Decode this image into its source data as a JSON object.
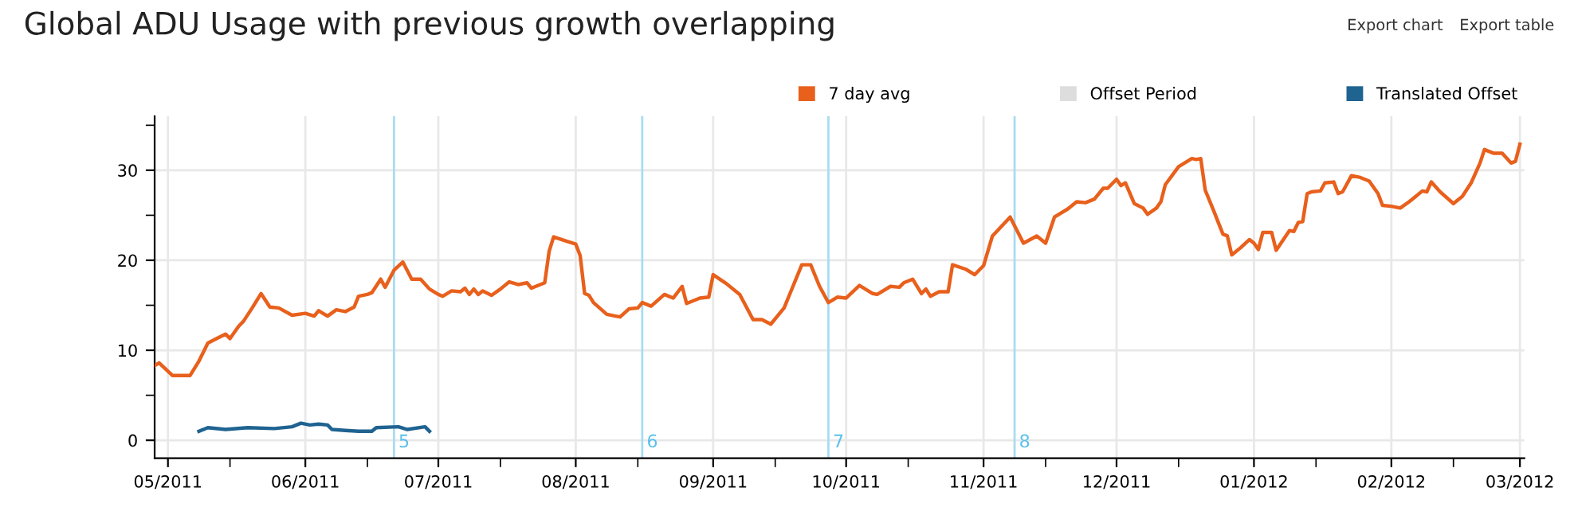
{
  "chart_data": {
    "type": "line",
    "title": "Global ADU Usage with previous growth overlapping",
    "annotations": [
      "Export chart",
      "Export table"
    ],
    "xlim": [
      "2011-04-28",
      "2012-03-02"
    ],
    "xticks": [
      {
        "value": "2011-05-01",
        "label": "05/2011"
      },
      {
        "value": "2011-05-15",
        "label": null
      },
      {
        "value": "2011-06-01",
        "label": "06/2011"
      },
      {
        "value": "2011-06-15",
        "label": null
      },
      {
        "value": "2011-07-01",
        "label": "07/2011"
      },
      {
        "value": "2011-07-15",
        "label": null
      },
      {
        "value": "2011-08-01",
        "label": "08/2011"
      },
      {
        "value": "2011-08-15",
        "label": null
      },
      {
        "value": "2011-09-01",
        "label": "09/2011"
      },
      {
        "value": "2011-09-15",
        "label": null
      },
      {
        "value": "2011-10-01",
        "label": "10/2011"
      },
      {
        "value": "2011-10-15",
        "label": null
      },
      {
        "value": "2011-11-01",
        "label": "11/2011"
      },
      {
        "value": "2011-11-15",
        "label": null
      },
      {
        "value": "2011-12-01",
        "label": "12/2011"
      },
      {
        "value": "2011-12-15",
        "label": null
      },
      {
        "value": "2012-01-01",
        "label": "01/2012"
      },
      {
        "value": "2012-01-15",
        "label": null
      },
      {
        "value": "2012-02-01",
        "label": "02/2012"
      },
      {
        "value": "2012-02-15",
        "label": null
      },
      {
        "value": "2012-03-01",
        "label": "03/2012"
      }
    ],
    "ylim": [
      -2,
      36
    ],
    "yticks": [
      0,
      {
        "value": 5,
        "label": null
      },
      10,
      {
        "value": 15,
        "label": null
      },
      20,
      {
        "value": 25,
        "label": null
      },
      30,
      {
        "value": 35,
        "label": null
      }
    ],
    "grid": true,
    "legend": "top right",
    "line_style": "solid",
    "marker": "none",
    "ref_lines": [
      {
        "axis": "x",
        "value": "2011-06-21",
        "label": "5",
        "color": "#a8dcf2"
      },
      {
        "axis": "x",
        "value": "2011-08-16",
        "label": "6",
        "color": "#a8dcf2"
      },
      {
        "axis": "x",
        "value": "2011-09-27",
        "label": "7",
        "color": "#a8dcf2"
      },
      {
        "axis": "x",
        "value": "2011-11-08",
        "label": "8",
        "color": "#a8dcf2"
      }
    ],
    "series": [
      {
        "name": "7 day avg",
        "color": "#e8601c",
        "x": [
          "2011-04-28",
          "2011-04-29",
          "2011-05-02",
          "2011-05-06",
          "2011-05-08",
          "2011-05-10",
          "2011-05-12",
          "2011-05-14",
          "2011-05-15",
          "2011-05-17",
          "2011-05-18",
          "2011-05-20",
          "2011-05-22",
          "2011-05-24",
          "2011-05-26",
          "2011-05-29",
          "2011-06-01",
          "2011-06-03",
          "2011-06-04",
          "2011-06-06",
          "2011-06-08",
          "2011-06-10",
          "2011-06-12",
          "2011-06-13",
          "2011-06-15",
          "2011-06-16",
          "2011-06-18",
          "2011-06-19",
          "2011-06-21",
          "2011-06-23",
          "2011-06-25",
          "2011-06-27",
          "2011-06-29",
          "2011-07-01",
          "2011-07-02",
          "2011-07-04",
          "2011-07-06",
          "2011-07-07",
          "2011-07-08",
          "2011-07-09",
          "2011-07-10",
          "2011-07-11",
          "2011-07-13",
          "2011-07-15",
          "2011-07-17",
          "2011-07-19",
          "2011-07-21",
          "2011-07-22",
          "2011-07-25",
          "2011-07-26",
          "2011-07-27",
          "2011-07-30",
          "2011-08-01",
          "2011-08-02",
          "2011-08-03",
          "2011-08-04",
          "2011-08-05",
          "2011-08-08",
          "2011-08-10",
          "2011-08-11",
          "2011-08-13",
          "2011-08-15",
          "2011-08-16",
          "2011-08-18",
          "2011-08-21",
          "2011-08-23",
          "2011-08-25",
          "2011-08-26",
          "2011-08-29",
          "2011-08-31",
          "2011-09-01",
          "2011-09-04",
          "2011-09-07",
          "2011-09-10",
          "2011-09-12",
          "2011-09-14",
          "2011-09-17",
          "2011-09-19",
          "2011-09-21",
          "2011-09-23",
          "2011-09-25",
          "2011-09-27",
          "2011-09-29",
          "2011-10-01",
          "2011-10-04",
          "2011-10-07",
          "2011-10-08",
          "2011-10-11",
          "2011-10-13",
          "2011-10-14",
          "2011-10-16",
          "2011-10-18",
          "2011-10-19",
          "2011-10-20",
          "2011-10-22",
          "2011-10-24",
          "2011-10-25",
          "2011-10-28",
          "2011-10-30",
          "2011-11-01",
          "2011-11-03",
          "2011-11-07",
          "2011-11-10",
          "2011-11-13",
          "2011-11-15",
          "2011-11-17",
          "2011-11-20",
          "2011-11-22",
          "2011-11-24",
          "2011-11-26",
          "2011-11-28",
          "2011-11-29",
          "2011-12-01",
          "2011-12-02",
          "2011-12-03",
          "2011-12-05",
          "2011-12-07",
          "2011-12-08",
          "2011-12-10",
          "2011-12-11",
          "2011-12-12",
          "2011-12-15",
          "2011-12-18",
          "2011-12-19",
          "2011-12-20",
          "2011-12-21",
          "2011-12-23",
          "2011-12-25",
          "2011-12-26",
          "2011-12-27",
          "2011-12-29",
          "2011-12-31",
          "2012-01-01",
          "2012-01-02",
          "2012-01-03",
          "2012-01-05",
          "2012-01-06",
          "2012-01-09",
          "2012-01-10",
          "2012-01-11",
          "2012-01-12",
          "2012-01-13",
          "2012-01-14",
          "2012-01-16",
          "2012-01-17",
          "2012-01-19",
          "2012-01-20",
          "2012-01-21",
          "2012-01-23",
          "2012-01-25",
          "2012-01-27",
          "2012-01-29",
          "2012-01-30",
          "2012-02-01",
          "2012-02-03",
          "2012-02-05",
          "2012-02-08",
          "2012-02-09",
          "2012-02-10",
          "2012-02-12",
          "2012-02-15",
          "2012-02-17",
          "2012-02-19",
          "2012-02-21",
          "2012-02-22",
          "2012-02-24",
          "2012-02-26",
          "2012-02-28",
          "2012-02-29",
          "2012-03-01"
        ],
        "values": [
          8.3,
          8.6,
          7.2,
          7.2,
          8.8,
          10.8,
          11.3,
          11.8,
          11.3,
          12.7,
          13.2,
          14.7,
          16.3,
          14.8,
          14.7,
          13.9,
          14.1,
          13.8,
          14.4,
          13.8,
          14.5,
          14.3,
          14.8,
          16.0,
          16.2,
          16.4,
          17.9,
          17.0,
          18.9,
          19.8,
          17.9,
          17.9,
          16.8,
          16.2,
          16.0,
          16.6,
          16.5,
          16.9,
          16.2,
          16.8,
          16.2,
          16.6,
          16.1,
          16.8,
          17.6,
          17.3,
          17.5,
          16.9,
          17.5,
          21.0,
          22.6,
          22.1,
          21.8,
          20.5,
          16.3,
          16.1,
          15.3,
          14.0,
          13.8,
          13.7,
          14.6,
          14.7,
          15.3,
          14.9,
          16.2,
          15.8,
          17.1,
          15.2,
          15.8,
          15.9,
          18.4,
          17.4,
          16.2,
          13.4,
          13.4,
          12.9,
          14.7,
          17.1,
          19.5,
          19.5,
          17.1,
          15.3,
          15.9,
          15.8,
          17.2,
          16.3,
          16.2,
          17.1,
          17.0,
          17.5,
          17.9,
          16.3,
          16.8,
          16.0,
          16.5,
          16.5,
          19.5,
          19.0,
          18.4,
          19.4,
          22.7,
          24.8,
          21.9,
          22.7,
          21.9,
          24.8,
          25.7,
          26.5,
          26.4,
          26.8,
          28.0,
          28.0,
          29.0,
          28.3,
          28.6,
          26.3,
          25.8,
          25.1,
          25.8,
          26.5,
          28.4,
          30.4,
          31.3,
          31.2,
          31.3,
          27.8,
          25.4,
          22.9,
          22.7,
          20.6,
          21.4,
          22.3,
          21.9,
          21.2,
          23.1,
          23.1,
          21.1,
          23.3,
          23.2,
          24.2,
          24.3,
          27.4,
          27.6,
          27.7,
          28.6,
          28.7,
          27.4,
          27.6,
          29.4,
          29.2,
          28.8,
          27.4,
          26.1,
          26.0,
          25.8,
          26.5,
          27.7,
          27.6,
          28.7,
          27.6,
          26.3,
          27.1,
          28.6,
          30.8,
          32.3,
          31.9,
          31.9,
          30.8,
          31.0,
          32.9
        ]
      },
      {
        "name": "Offset Period",
        "color": "#dddddd"
      },
      {
        "name": "Translated Offset",
        "color": "#1f6391",
        "x": [
          "2011-05-08",
          "2011-05-10",
          "2011-05-14",
          "2011-05-19",
          "2011-05-25",
          "2011-05-29",
          "2011-05-31",
          "2011-06-02",
          "2011-06-04",
          "2011-06-06",
          "2011-06-07",
          "2011-06-10",
          "2011-06-13",
          "2011-06-16",
          "2011-06-17",
          "2011-06-22",
          "2011-06-24",
          "2011-06-28",
          "2011-06-29"
        ],
        "values": [
          1.0,
          1.4,
          1.2,
          1.4,
          1.3,
          1.5,
          1.9,
          1.7,
          1.8,
          1.7,
          1.2,
          1.1,
          1.0,
          1.0,
          1.4,
          1.5,
          1.2,
          1.5,
          1.0
        ]
      }
    ]
  }
}
